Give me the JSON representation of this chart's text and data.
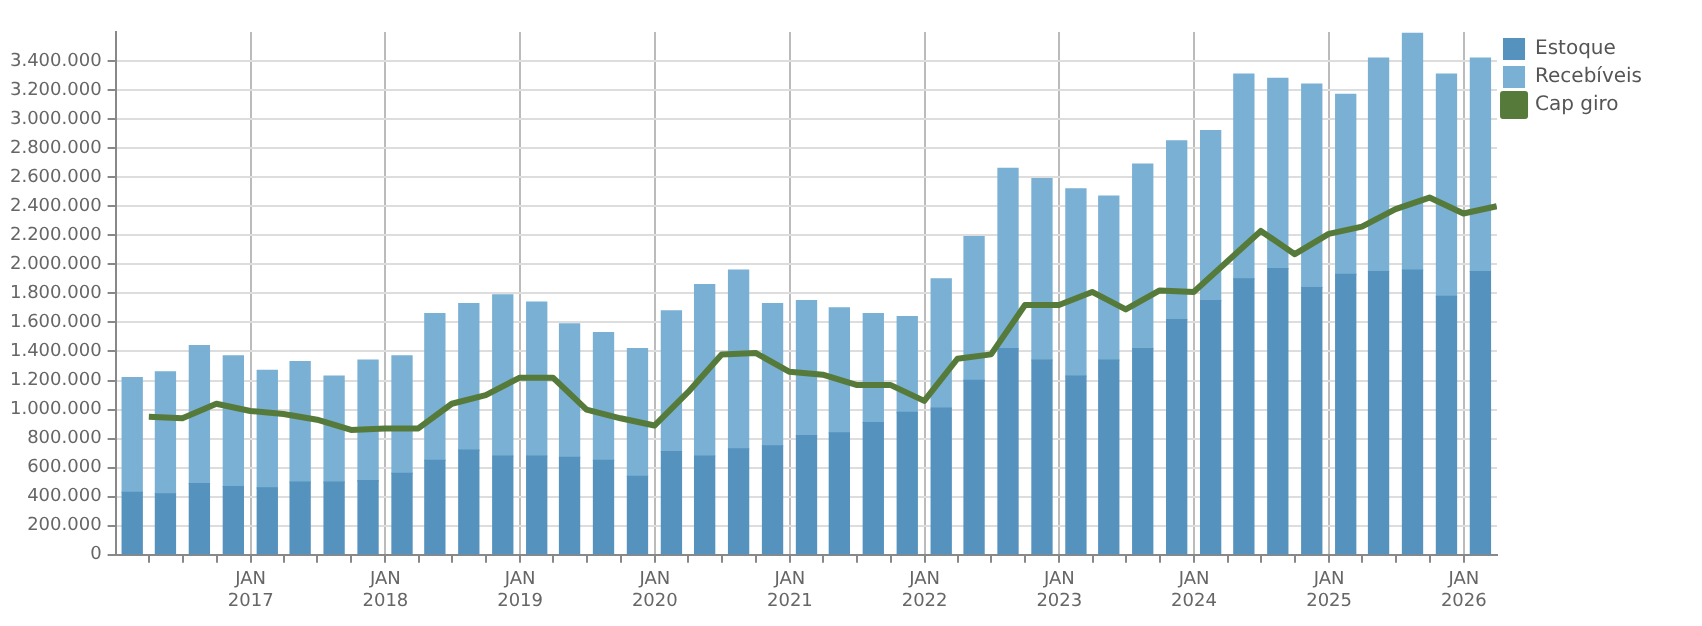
{
  "chart_data": {
    "type": "bar",
    "stacked": true,
    "legend": "right",
    "grid": true,
    "marker": "none",
    "x": [
      "2016-02-15",
      "2016-05-15",
      "2016-08-15",
      "2016-11-15",
      "2017-02-15",
      "2017-05-15",
      "2017-08-15",
      "2017-11-15",
      "2018-02-15",
      "2018-05-15",
      "2018-08-15",
      "2018-11-15",
      "2019-02-15",
      "2019-05-15",
      "2019-08-15",
      "2019-11-15",
      "2020-02-15",
      "2020-05-15",
      "2020-08-15",
      "2020-11-15",
      "2021-02-15",
      "2021-05-15",
      "2021-08-15",
      "2021-11-15",
      "2022-02-15",
      "2022-05-15",
      "2022-08-15",
      "2022-11-15",
      "2023-02-15",
      "2023-05-15",
      "2023-08-15",
      "2023-11-15",
      "2024-02-15",
      "2024-05-15",
      "2024-08-15",
      "2024-11-15",
      "2025-02-15",
      "2025-05-15",
      "2025-08-15",
      "2025-11-15",
      "2026-02-15"
    ],
    "xlim": [
      "2016-01-01",
      "2026-04-01"
    ],
    "xticks": [
      {
        "value": "2016-04-01",
        "label": null
      },
      {
        "value": "2016-07-01",
        "label": null
      },
      {
        "value": "2016-10-01",
        "label": null
      },
      {
        "value": "2017-01-01",
        "label": "JAN 2017"
      },
      {
        "value": "2017-04-01",
        "label": null
      },
      {
        "value": "2017-07-01",
        "label": null
      },
      {
        "value": "2017-10-01",
        "label": null
      },
      {
        "value": "2018-01-01",
        "label": "JAN 2018"
      },
      {
        "value": "2018-04-01",
        "label": null
      },
      {
        "value": "2018-07-01",
        "label": null
      },
      {
        "value": "2018-10-01",
        "label": null
      },
      {
        "value": "2019-01-01",
        "label": "JAN 2019"
      },
      {
        "value": "2019-04-01",
        "label": null
      },
      {
        "value": "2019-07-01",
        "label": null
      },
      {
        "value": "2019-10-01",
        "label": null
      },
      {
        "value": "2020-01-01",
        "label": "JAN 2020"
      },
      {
        "value": "2020-04-01",
        "label": null
      },
      {
        "value": "2020-07-01",
        "label": null
      },
      {
        "value": "2020-10-01",
        "label": null
      },
      {
        "value": "2021-01-01",
        "label": "JAN 2021"
      },
      {
        "value": "2021-04-01",
        "label": null
      },
      {
        "value": "2021-07-01",
        "label": null
      },
      {
        "value": "2021-10-01",
        "label": null
      },
      {
        "value": "2022-01-01",
        "label": "JAN 2022"
      },
      {
        "value": "2022-04-01",
        "label": null
      },
      {
        "value": "2022-07-01",
        "label": null
      },
      {
        "value": "2022-10-01",
        "label": null
      },
      {
        "value": "2023-01-01",
        "label": "JAN 2023"
      },
      {
        "value": "2023-04-01",
        "label": null
      },
      {
        "value": "2023-07-01",
        "label": null
      },
      {
        "value": "2023-10-01",
        "label": null
      },
      {
        "value": "2024-01-01",
        "label": "JAN 2024"
      },
      {
        "value": "2024-04-01",
        "label": null
      },
      {
        "value": "2024-07-01",
        "label": null
      },
      {
        "value": "2024-10-01",
        "label": null
      },
      {
        "value": "2025-01-01",
        "label": "JAN 2025"
      },
      {
        "value": "2025-04-01",
        "label": null
      },
      {
        "value": "2025-07-01",
        "label": null
      },
      {
        "value": "2025-10-01",
        "label": null
      },
      {
        "value": "2026-01-01",
        "label": "JAN 2026"
      }
    ],
    "ylim": [
      0,
      3600000
    ],
    "yticks": [
      0,
      {
        "value": 200000,
        "label": "200.000"
      },
      {
        "value": 400000,
        "label": "400.000"
      },
      {
        "value": 600000,
        "label": "600.000"
      },
      {
        "value": 800000,
        "label": "800.000"
      },
      {
        "value": 1000000,
        "label": "1.000.000"
      },
      {
        "value": 1200000,
        "label": "1.200.000"
      },
      {
        "value": 1400000,
        "label": "1.400.000"
      },
      {
        "value": 1600000,
        "label": "1.600.000"
      },
      {
        "value": 1800000,
        "label": "1.800.000"
      },
      {
        "value": 2000000,
        "label": "2.000.000"
      },
      {
        "value": 2200000,
        "label": "2.200.000"
      },
      {
        "value": 2400000,
        "label": "2.400.000"
      },
      {
        "value": 2600000,
        "label": "2.600.000"
      },
      {
        "value": 2800000,
        "label": "2.800.000"
      },
      {
        "value": 3000000,
        "label": "3.000.000"
      },
      {
        "value": 3200000,
        "label": "3.200.000"
      },
      {
        "value": 3400000,
        "label": "3.400.000"
      }
    ],
    "series": [
      {
        "name": "Estoque",
        "color": "#5592be",
        "values": [
          430000,
          420000,
          490000,
          470000,
          460000,
          500000,
          500000,
          510000,
          560000,
          650000,
          720000,
          680000,
          680000,
          670000,
          650000,
          540000,
          710000,
          680000,
          730000,
          750000,
          820000,
          840000,
          910000,
          980000,
          1010000,
          1200000,
          1420000,
          1340000,
          1230000,
          1340000,
          1420000,
          1620000,
          1750000,
          1900000,
          1970000,
          1840000,
          1930000,
          1950000,
          1960000,
          1780000,
          1950000
        ]
      },
      {
        "name": "Recebíveis",
        "color": "#79b0d3",
        "values": [
          790000,
          840000,
          950000,
          900000,
          810000,
          830000,
          730000,
          830000,
          810000,
          1010000,
          1010000,
          1110000,
          1060000,
          920000,
          880000,
          880000,
          970000,
          1180000,
          1230000,
          980000,
          930000,
          860000,
          750000,
          660000,
          890000,
          990000,
          1240000,
          1250000,
          1290000,
          1130000,
          1270000,
          1230000,
          1170000,
          1410000,
          1310000,
          1400000,
          1240000,
          1470000,
          1630000,
          1530000,
          1470000
        ]
      },
      {
        "name": "Cap giro",
        "type": "line",
        "color": "#567a3a",
        "line_style": "solid",
        "x": [
          "2016-03-31",
          "2016-06-30",
          "2016-09-30",
          "2016-12-31",
          "2017-03-31",
          "2017-06-30",
          "2017-09-30",
          "2017-12-31",
          "2018-03-31",
          "2018-06-30",
          "2018-09-30",
          "2018-12-31",
          "2019-03-31",
          "2019-06-30",
          "2019-09-30",
          "2019-12-31",
          "2020-03-31",
          "2020-06-30",
          "2020-09-30",
          "2020-12-31",
          "2021-03-31",
          "2021-06-30",
          "2021-09-30",
          "2021-12-31",
          "2022-03-31",
          "2022-06-30",
          "2022-09-30",
          "2022-12-31",
          "2023-03-31",
          "2023-06-30",
          "2023-09-30",
          "2023-12-31",
          "2024-03-31",
          "2024-06-30",
          "2024-09-30",
          "2024-12-31",
          "2025-03-31",
          "2025-06-30",
          "2025-09-30",
          "2025-12-31",
          "2026-03-31"
        ],
        "values": [
          950000,
          940000,
          1040000,
          990000,
          970000,
          930000,
          860000,
          870000,
          870000,
          1040000,
          1100000,
          1220000,
          1220000,
          1000000,
          940000,
          890000,
          1120000,
          1380000,
          1390000,
          1260000,
          1240000,
          1170000,
          1170000,
          1060000,
          1350000,
          1380000,
          1720000,
          1720000,
          1810000,
          1690000,
          1820000,
          1810000,
          2020000,
          2230000,
          2070000,
          2210000,
          2260000,
          2380000,
          2460000,
          2350000,
          2400000
        ]
      }
    ]
  }
}
